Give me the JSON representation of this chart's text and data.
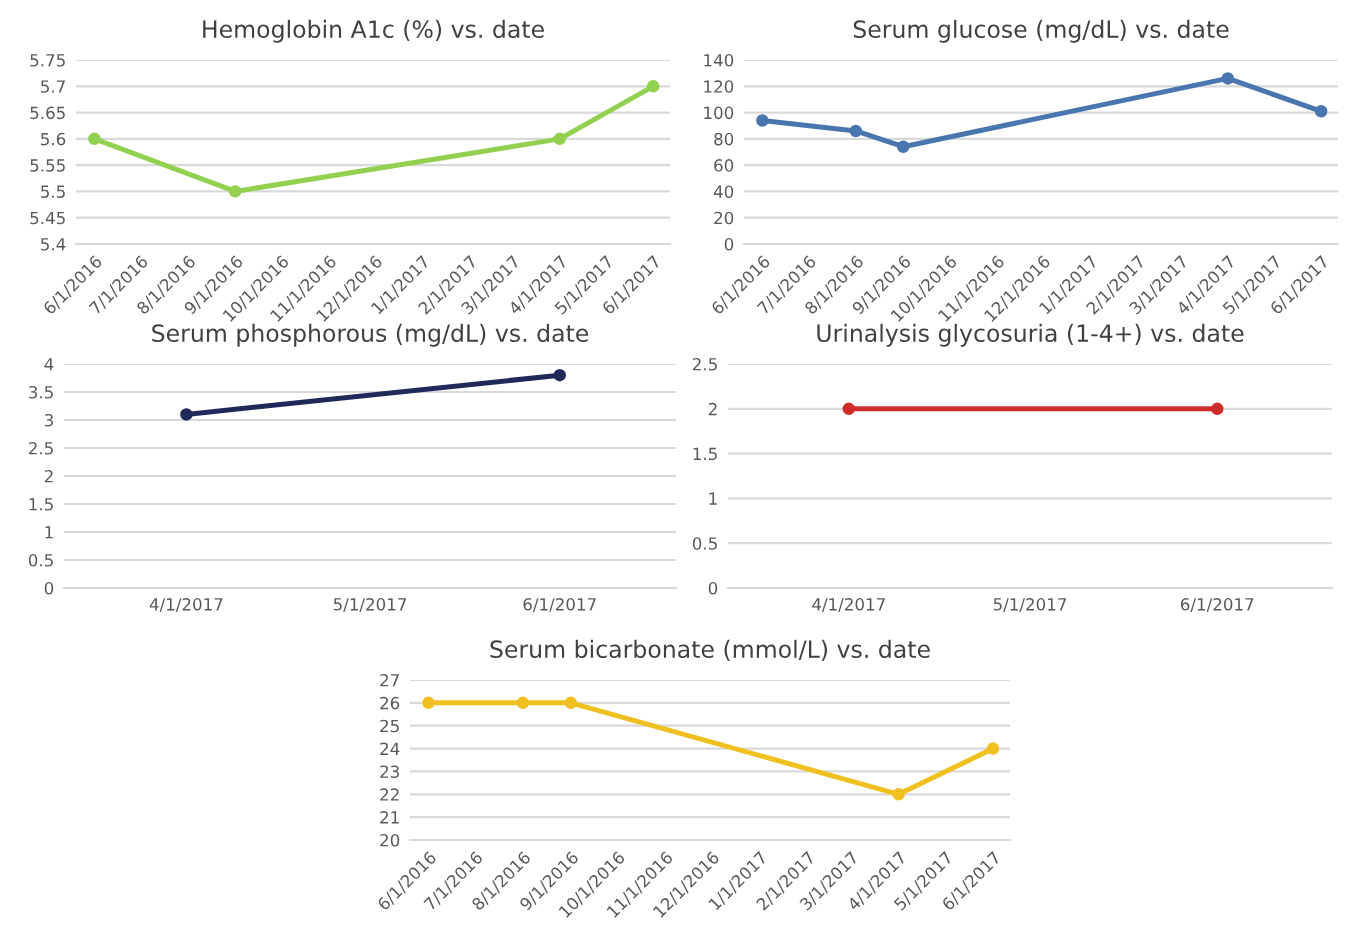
{
  "chart_data": [
    {
      "type": "line",
      "title": "Hemoglobin A1c (%) vs. date",
      "x": [
        "2016-06-01",
        "2016-09-01",
        "2017-04-01",
        "2017-06-01"
      ],
      "series": [
        {
          "color": "#92d050",
          "values": [
            5.6,
            5.5,
            5.6,
            5.7
          ]
        }
      ],
      "xlim": [
        "2016-05-20",
        "2017-06-12"
      ],
      "ylim": [
        5.4,
        5.75
      ],
      "xticks": [
        {
          "value": "2016-06-01",
          "label": "6/1/2016"
        },
        {
          "value": "2016-07-01",
          "label": "7/1/2016"
        },
        {
          "value": "2016-08-01",
          "label": "8/1/2016"
        },
        {
          "value": "2016-09-01",
          "label": "9/1/2016"
        },
        {
          "value": "2016-10-01",
          "label": "10/1/2016"
        },
        {
          "value": "2016-11-01",
          "label": "11/1/2016"
        },
        {
          "value": "2016-12-01",
          "label": "12/1/2016"
        },
        {
          "value": "2017-01-01",
          "label": "1/1/2017"
        },
        {
          "value": "2017-02-01",
          "label": "2/1/2017"
        },
        {
          "value": "2017-03-01",
          "label": "3/1/2017"
        },
        {
          "value": "2017-04-01",
          "label": "4/1/2017"
        },
        {
          "value": "2017-05-01",
          "label": "5/1/2017"
        },
        {
          "value": "2017-06-01",
          "label": "6/1/2017"
        }
      ],
      "yticks": [
        5.4,
        5.45,
        5.5,
        5.55,
        5.6,
        5.65,
        5.7,
        5.75
      ],
      "grid": "y",
      "marker": "circle"
    },
    {
      "type": "line",
      "title": "Serum glucose (mg/dL) vs. date",
      "x": [
        "2016-06-01",
        "2016-08-01",
        "2016-09-01",
        "2017-04-01",
        "2017-06-01"
      ],
      "series": [
        {
          "color": "#4a76b0",
          "values": [
            94,
            86,
            74,
            126,
            101
          ]
        }
      ],
      "xlim": [
        "2016-05-20",
        "2017-06-12"
      ],
      "ylim": [
        0,
        140
      ],
      "xticks": [
        {
          "value": "2016-06-01",
          "label": "6/1/2016"
        },
        {
          "value": "2016-07-01",
          "label": "7/1/2016"
        },
        {
          "value": "2016-08-01",
          "label": "8/1/2016"
        },
        {
          "value": "2016-09-01",
          "label": "9/1/2016"
        },
        {
          "value": "2016-10-01",
          "label": "10/1/2016"
        },
        {
          "value": "2016-11-01",
          "label": "11/1/2016"
        },
        {
          "value": "2016-12-01",
          "label": "12/1/2016"
        },
        {
          "value": "2017-01-01",
          "label": "1/1/2017"
        },
        {
          "value": "2017-02-01",
          "label": "2/1/2017"
        },
        {
          "value": "2017-03-01",
          "label": "3/1/2017"
        },
        {
          "value": "2017-04-01",
          "label": "4/1/2017"
        },
        {
          "value": "2017-05-01",
          "label": "5/1/2017"
        },
        {
          "value": "2017-06-01",
          "label": "6/1/2017"
        }
      ],
      "yticks": [
        0,
        20,
        40,
        60,
        80,
        100,
        120,
        140
      ],
      "grid": "y",
      "marker": "circle"
    },
    {
      "type": "line",
      "title": "Serum phosphorous (mg/dL) vs. date",
      "x": [
        "2017-04-01",
        "2017-06-01"
      ],
      "series": [
        {
          "color": "#1f2a5a",
          "values": [
            3.1,
            3.8
          ]
        }
      ],
      "xlim": [
        "2017-03-12",
        "2017-06-20"
      ],
      "ylim": [
        0,
        4
      ],
      "xticks": [
        {
          "value": "2017-04-01",
          "label": "4/1/2017"
        },
        {
          "value": "2017-05-01",
          "label": "5/1/2017"
        },
        {
          "value": "2017-06-01",
          "label": "6/1/2017"
        }
      ],
      "yticks": [
        0,
        0.5,
        1,
        1.5,
        2,
        2.5,
        3,
        3.5,
        4
      ],
      "grid": "y",
      "marker": "circle"
    },
    {
      "type": "line",
      "title": "Urinalysis glycosuria (1-4+) vs. date",
      "x": [
        "2017-04-01",
        "2017-06-01"
      ],
      "series": [
        {
          "color": "#d02b2b",
          "values": [
            2,
            2
          ]
        }
      ],
      "xlim": [
        "2017-03-12",
        "2017-06-20"
      ],
      "ylim": [
        0,
        2.5
      ],
      "xticks": [
        {
          "value": "2017-04-01",
          "label": "4/1/2017"
        },
        {
          "value": "2017-05-01",
          "label": "5/1/2017"
        },
        {
          "value": "2017-06-01",
          "label": "6/1/2017"
        }
      ],
      "yticks": [
        0,
        0.5,
        1,
        1.5,
        2,
        2.5
      ],
      "grid": "y",
      "marker": "circle"
    },
    {
      "type": "line",
      "title": "Serum bicarbonate (mmol/L) vs. date",
      "x": [
        "2016-06-01",
        "2016-08-01",
        "2016-09-01",
        "2017-04-01",
        "2017-06-01"
      ],
      "series": [
        {
          "color": "#f0c020",
          "values": [
            26,
            26,
            26,
            22,
            24
          ]
        }
      ],
      "xlim": [
        "2016-05-20",
        "2017-06-12"
      ],
      "ylim": [
        20,
        27
      ],
      "xticks": [
        {
          "value": "2016-06-01",
          "label": "6/1/2016"
        },
        {
          "value": "2016-07-01",
          "label": "7/1/2016"
        },
        {
          "value": "2016-08-01",
          "label": "8/1/2016"
        },
        {
          "value": "2016-09-01",
          "label": "9/1/2016"
        },
        {
          "value": "2016-10-01",
          "label": "10/1/2016"
        },
        {
          "value": "2016-11-01",
          "label": "11/1/2016"
        },
        {
          "value": "2016-12-01",
          "label": "12/1/2016"
        },
        {
          "value": "2017-01-01",
          "label": "1/1/2017"
        },
        {
          "value": "2017-02-01",
          "label": "2/1/2017"
        },
        {
          "value": "2017-03-01",
          "label": "3/1/2017"
        },
        {
          "value": "2017-04-01",
          "label": "4/1/2017"
        },
        {
          "value": "2017-05-01",
          "label": "5/1/2017"
        },
        {
          "value": "2017-06-01",
          "label": "6/1/2017"
        }
      ],
      "yticks": [
        20,
        21,
        22,
        23,
        24,
        25,
        26,
        27
      ],
      "grid": "y",
      "marker": "circle"
    }
  ]
}
